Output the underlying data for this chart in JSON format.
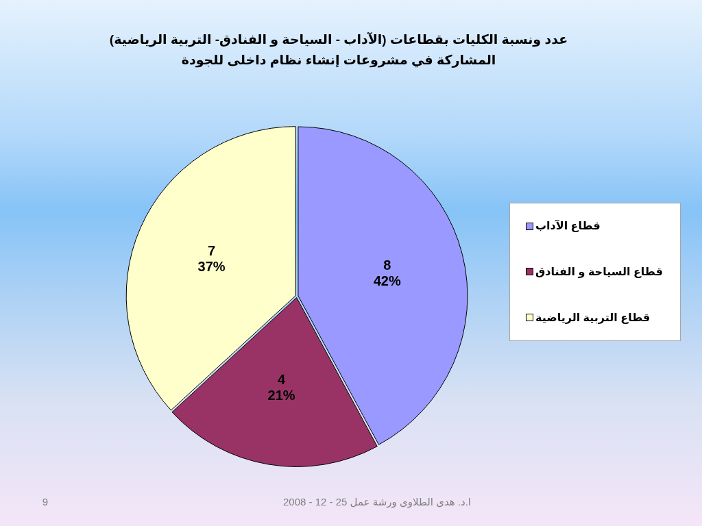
{
  "chart_data": {
    "type": "pie",
    "title": "عدد ونسبة الكليات بقطاعات (الآداب - السياحة و الفنادق- التربية الرياضية) المشاركة في مشروعات إنشاء نظام داخلى للجودة",
    "categories": [
      "قطاع الآداب",
      "قطاع السياحة و الفنادق",
      "قطاع التربية الرياضية"
    ],
    "values": [
      8,
      4,
      7
    ],
    "colors": [
      "#9999ff",
      "#993366",
      "#ffffcc"
    ],
    "value_labels": [
      "8 42%",
      "4 21%",
      "7 37%"
    ],
    "legend": "right",
    "annotations": [
      "ا.د. هدى الطلاوى ورشة عمل 25 - 12 - 2008",
      "9"
    ]
  }
}
